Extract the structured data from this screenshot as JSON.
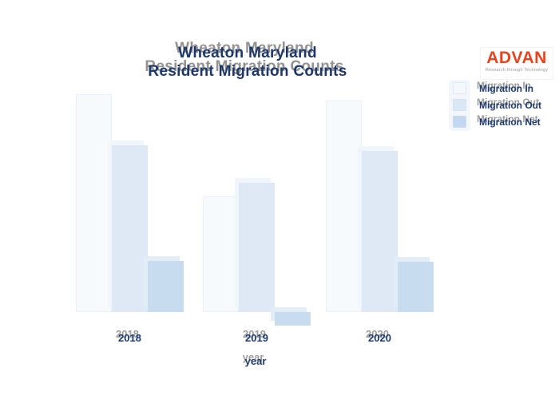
{
  "page": {
    "background": "#ffffff"
  },
  "title": {
    "line1": "Wheaton Maryland",
    "line2": "Resident Migration Counts",
    "color": "#1d3869"
  },
  "branding": {
    "name": "ADVAN",
    "tagline": "Research through Technology",
    "brand_color": "#e8431f"
  },
  "legend": {
    "position": "upper-right",
    "items": [
      {
        "label": "Migration In",
        "color": "#f4f8fc"
      },
      {
        "label": "Migration Out",
        "color": "#dbe7f4"
      },
      {
        "label": "Migration Net",
        "color": "#c3d8ee"
      }
    ]
  },
  "x_axis": {
    "label": "year",
    "ticks": [
      "2018",
      "2019",
      "2020"
    ]
  },
  "chart_data": {
    "type": "bar",
    "title": "Wheaton Maryland Resident Migration Counts",
    "categories": [
      "2018",
      "2019",
      "2020"
    ],
    "series": [
      {
        "name": "Migration In",
        "color": "#f7fafd",
        "values": [
          2730,
          1450,
          2650
        ]
      },
      {
        "name": "Migration Out",
        "color": "#dfe9f5",
        "values": [
          2090,
          1620,
          2020
        ]
      },
      {
        "name": "Migration Net",
        "color": "#c8dcf0",
        "values": [
          640,
          -170,
          630
        ]
      }
    ],
    "xlabel": "year",
    "ylabel": "",
    "ylim": [
      -300,
      2900
    ],
    "grid": false,
    "y_axis_shown": false,
    "legend_position": "upper right"
  }
}
